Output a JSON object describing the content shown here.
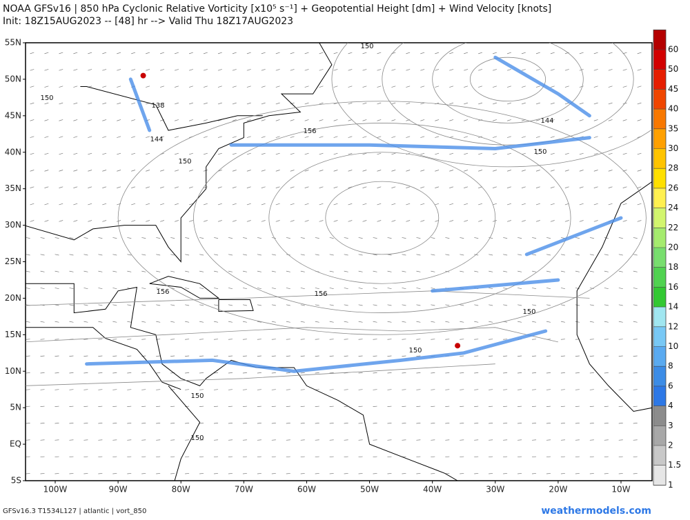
{
  "header": {
    "title": "NOAA GFSv16 |  850 hPa Cyclonic Relative Vorticity [x10⁵ s⁻¹] + Geopotential Height [dm] + Wind Velocity [knots]",
    "subtitle": "Init: 18Z15AUG2023 -- [48] hr --> Valid Thu 18Z17AUG2023"
  },
  "map": {
    "lat_labels": [
      "55N",
      "50N",
      "45N",
      "40N",
      "35N",
      "30N",
      "25N",
      "20N",
      "15N",
      "10N",
      "5N",
      "EQ",
      "5S"
    ],
    "lon_labels": [
      "100W",
      "90W",
      "80W",
      "70W",
      "60W",
      "50W",
      "40W",
      "30W",
      "20W",
      "10W"
    ],
    "contour_labels": [
      150,
      150,
      138,
      144,
      156,
      144,
      150,
      150,
      156,
      156,
      150,
      150,
      150,
      150
    ]
  },
  "colorbar": {
    "levels": [
      60,
      50,
      45,
      40,
      35,
      30,
      28,
      26,
      24,
      22,
      20,
      18,
      16,
      14,
      12,
      10,
      8,
      6,
      4,
      3,
      2,
      1.5,
      1
    ],
    "colors": [
      "#b40000",
      "#d20000",
      "#e61e00",
      "#f04600",
      "#f87800",
      "#ffa000",
      "#ffc400",
      "#ffe000",
      "#fff050",
      "#d2f56e",
      "#a5eb6e",
      "#78de6e",
      "#50d250",
      "#32c832",
      "#a0e6f0",
      "#78c8f5",
      "#5aaaf0",
      "#3c8ce6",
      "#2d78e6",
      "#8c8c8c",
      "#a8a8a8",
      "#c8c8c8",
      "#e6e6e6"
    ]
  },
  "footer": {
    "left": "GFSv16.3 T1534L127 | atlantic | vort_850",
    "brand": "weathermodels.com"
  }
}
